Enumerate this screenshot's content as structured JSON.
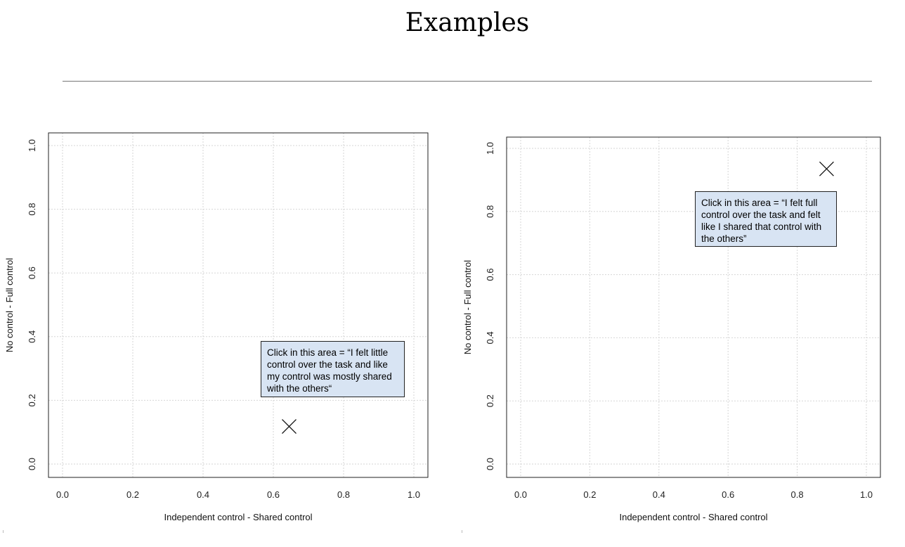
{
  "header": {
    "title": "Examples"
  },
  "chart_data": [
    {
      "type": "scatter",
      "title": "",
      "xlabel": "Independent control - Shared control",
      "ylabel": "No control - Full control",
      "xlim": [
        0.0,
        1.0
      ],
      "ylim": [
        0.0,
        1.0
      ],
      "xticks": [
        "0.0",
        "0.2",
        "0.4",
        "0.6",
        "0.8",
        "1.0"
      ],
      "yticks": [
        "0.0",
        "0.2",
        "0.4",
        "0.6",
        "0.8",
        "1.0"
      ],
      "grid": true,
      "marker": "x",
      "points": [
        {
          "x": 0.645,
          "y": 0.118
        }
      ],
      "annotation": "Click in this area = “I felt little control over the task and like my control was mostly shared with the others“"
    },
    {
      "type": "scatter",
      "title": "",
      "xlabel": "Independent control - Shared control",
      "ylabel": "No control - Full control",
      "xlim": [
        0.0,
        1.0
      ],
      "ylim": [
        0.0,
        1.0
      ],
      "xticks": [
        "0.0",
        "0.2",
        "0.4",
        "0.6",
        "0.8",
        "1.0"
      ],
      "yticks": [
        "0.0",
        "0.2",
        "0.4",
        "0.6",
        "0.8",
        "1.0"
      ],
      "grid": true,
      "marker": "x",
      "points": [
        {
          "x": 0.885,
          "y": 0.935
        }
      ],
      "annotation": "Click in this area = “I felt full control over the task and felt like I shared that control with the others”"
    }
  ]
}
